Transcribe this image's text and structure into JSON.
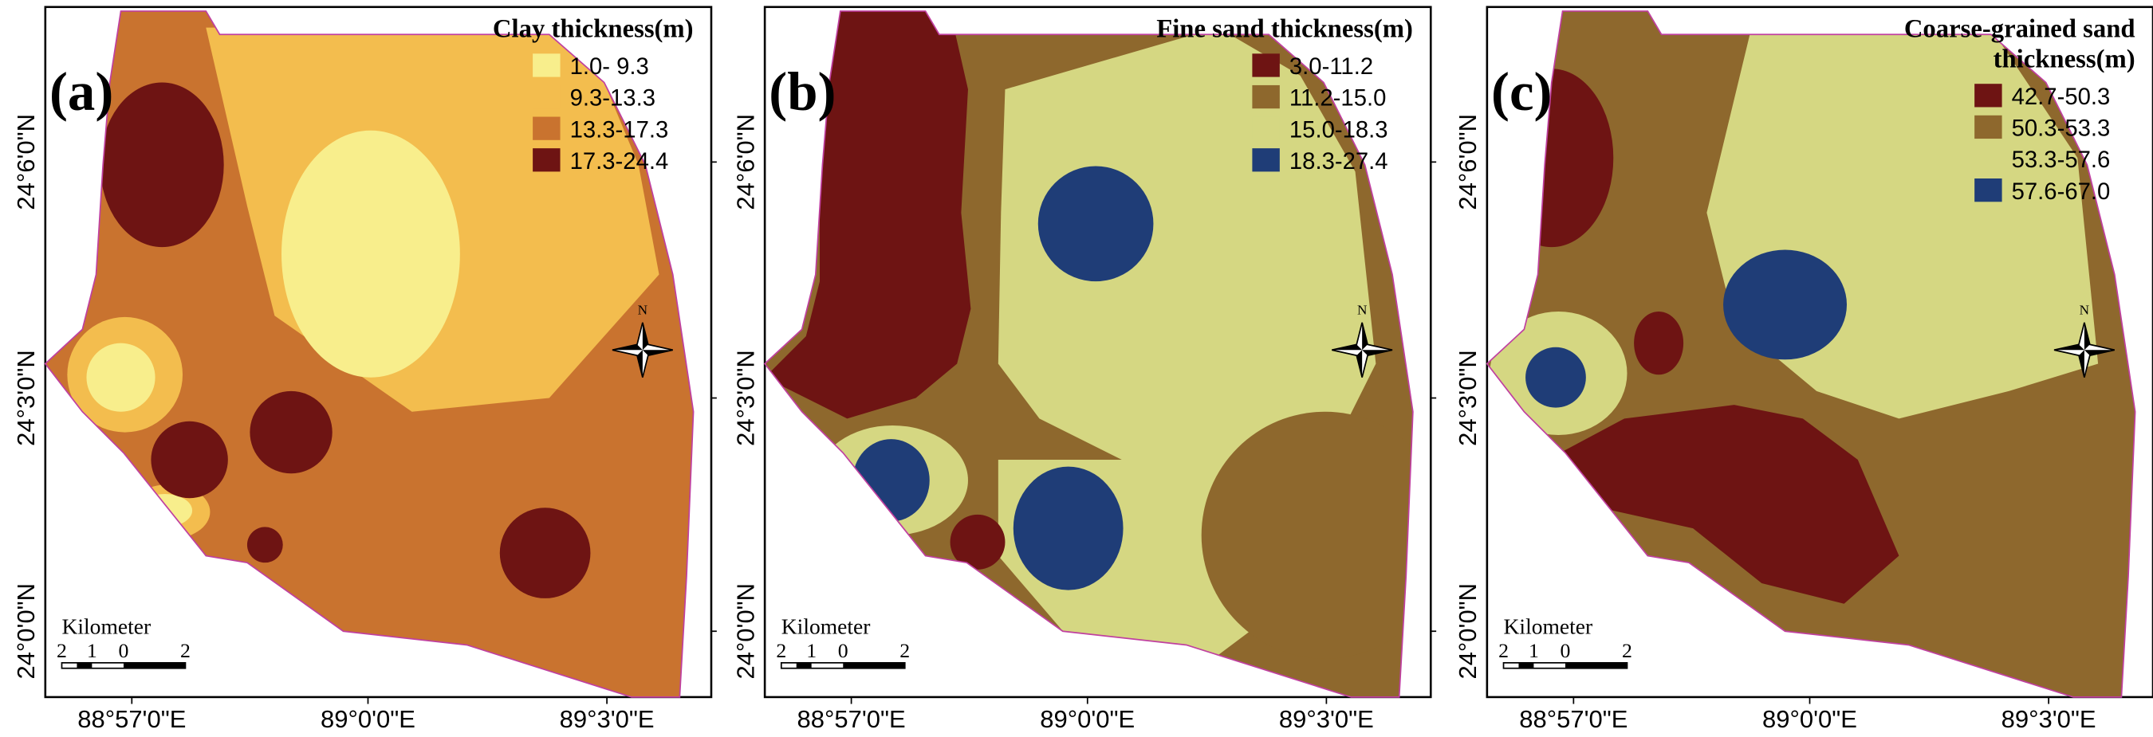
{
  "panels": [
    {
      "label": "(a)",
      "legend_title": [
        "Clay thickness(m)"
      ],
      "legend": [
        {
          "label": "1.0- 9.3",
          "color": "#f8ee8c"
        },
        {
          "label": "9.3-13.3",
          "color": "#f3bd4e"
        },
        {
          "label": "13.3-17.3",
          "color": "#c9732f"
        },
        {
          "label": "17.3-24.4",
          "color": "#6e1413"
        }
      ],
      "x_ticks": [
        "88°57'0\"E",
        "89°0'0\"E",
        "89°3'0\"E"
      ],
      "y_ticks": [
        "24°6'0\"N",
        "24°3'0\"N",
        "24°0'0\"N"
      ],
      "north": "N",
      "scale_title": "Kilometer",
      "scale_labels": [
        "2",
        "1",
        "0",
        "2"
      ]
    },
    {
      "label": "(b)",
      "legend_title": [
        "Fine sand thickness(m)"
      ],
      "legend": [
        {
          "label": "3.0-11.2",
          "color": "#6e1413"
        },
        {
          "label": "11.2-15.0",
          "color": "#8e682d"
        },
        {
          "label": "15.0-18.3",
          "color": "#d5d782"
        },
        {
          "label": "18.3-27.4",
          "color": "#1f3d77"
        }
      ],
      "x_ticks": [
        "88°57'0\"E",
        "89°0'0\"E",
        "89°3'0\"E"
      ],
      "y_ticks": [
        "24°6'0\"N",
        "24°3'0\"N",
        "24°0'0\"N"
      ],
      "north": "N",
      "scale_title": "Kilometer",
      "scale_labels": [
        "2",
        "1",
        "0",
        "2"
      ]
    },
    {
      "label": "(c)",
      "legend_title": [
        "Coarse-grained sand",
        "thickness(m)"
      ],
      "legend": [
        {
          "label": "42.7-50.3",
          "color": "#6e1413"
        },
        {
          "label": "50.3-53.3",
          "color": "#8e682d"
        },
        {
          "label": "53.3-57.6",
          "color": "#d5d782"
        },
        {
          "label": "57.6-67.0",
          "color": "#1f3d77"
        }
      ],
      "x_ticks": [
        "88°57'0\"E",
        "89°0'0\"E",
        "89°3'0\"E"
      ],
      "y_ticks": [
        "24°6'0\"N",
        "24°3'0\"N",
        "24°0'0\"N"
      ],
      "north": "N",
      "scale_title": "Kilometer",
      "scale_labels": [
        "2",
        "1",
        "0",
        "2"
      ]
    }
  ]
}
